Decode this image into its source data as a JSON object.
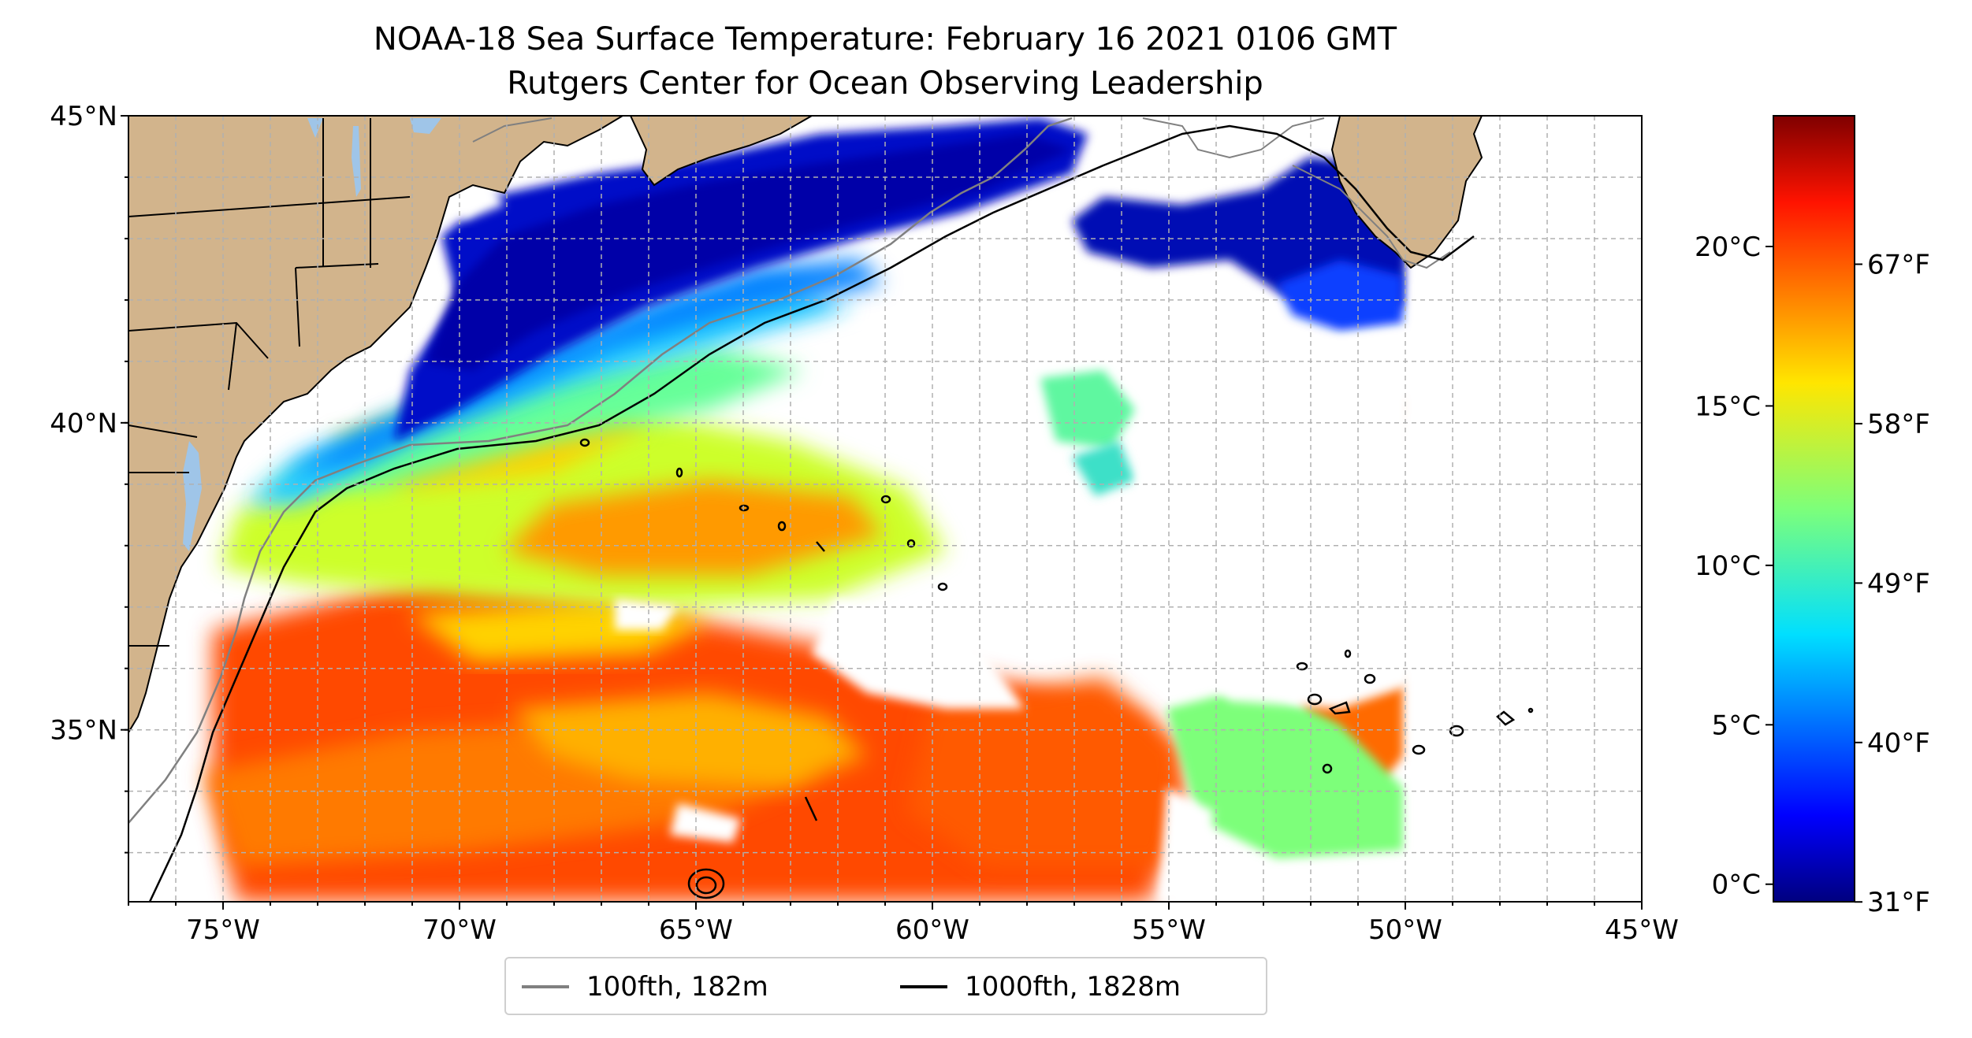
{
  "title": {
    "line1": "NOAA-18 Sea Surface Temperature: February 16 2021 0106 GMT",
    "line2": "Rutgers Center for Ocean Observing Leadership"
  },
  "map": {
    "lon_range": [
      -77,
      -45
    ],
    "lat_range": [
      32.2,
      45
    ],
    "lon_ticks": [
      {
        "value": -75,
        "label": "75°W"
      },
      {
        "value": -70,
        "label": "70°W"
      },
      {
        "value": -65,
        "label": "65°W"
      },
      {
        "value": -60,
        "label": "60°W"
      },
      {
        "value": -55,
        "label": "55°W"
      },
      {
        "value": -50,
        "label": "50°W"
      },
      {
        "value": -45,
        "label": "45°W"
      }
    ],
    "lat_ticks": [
      {
        "value": 35,
        "label": "35°N"
      },
      {
        "value": 40,
        "label": "40°N"
      },
      {
        "value": 45,
        "label": "45°N"
      }
    ],
    "gridlines": "dashed",
    "land_color": "#d2b48c",
    "lake_color": "#9fc5e8"
  },
  "colorbar": {
    "colormap": "jet",
    "celsius_ticks": [
      {
        "value": 0,
        "label": "0°C"
      },
      {
        "value": 5,
        "label": "5°C"
      },
      {
        "value": 10,
        "label": "10°C"
      },
      {
        "value": 15,
        "label": "15°C"
      },
      {
        "value": 20,
        "label": "20°C"
      }
    ],
    "fahrenheit_ticks": [
      {
        "value": 31,
        "label": "31°F"
      },
      {
        "value": 40,
        "label": "40°F"
      },
      {
        "value": 49,
        "label": "49°F"
      },
      {
        "value": 58,
        "label": "58°F"
      },
      {
        "value": 67,
        "label": "67°F"
      }
    ]
  },
  "legend": {
    "items": [
      {
        "label": "100fth, 182m",
        "color": "#808080"
      },
      {
        "label": "1000fth, 1828m",
        "color": "#000000"
      }
    ]
  }
}
